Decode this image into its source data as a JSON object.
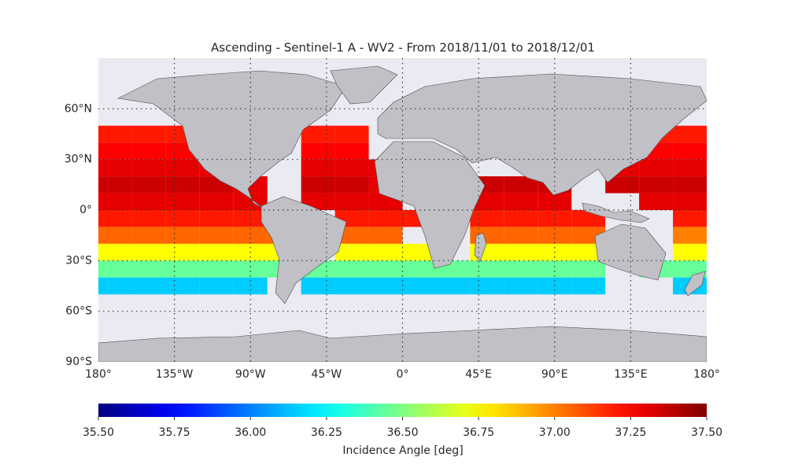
{
  "chart_data": {
    "type": "heatmap",
    "title": "Ascending - Sentinel-1 A - WV2 - From 2018/11/01 to 2018/12/01",
    "cmap": "jet",
    "grid": true,
    "xlim": [
      -180,
      180
    ],
    "ylim": [
      -90,
      90
    ],
    "xticks": [
      {
        "value": -180,
        "label": "180°"
      },
      {
        "value": -135,
        "label": "135°W"
      },
      {
        "value": -90,
        "label": "90°W"
      },
      {
        "value": -45,
        "label": "45°W"
      },
      {
        "value": 0,
        "label": "0°"
      },
      {
        "value": 45,
        "label": "45°E"
      },
      {
        "value": 90,
        "label": "90°E"
      },
      {
        "value": 135,
        "label": "135°E"
      },
      {
        "value": 180,
        "label": "180°"
      }
    ],
    "yticks": [
      {
        "value": -90,
        "label": "90°S"
      },
      {
        "value": -60,
        "label": "60°S"
      },
      {
        "value": -30,
        "label": "30°S"
      },
      {
        "value": 0,
        "label": "0°"
      },
      {
        "value": 30,
        "label": "30°N"
      },
      {
        "value": 60,
        "label": "60°N"
      }
    ],
    "x": [
      -180,
      -160,
      -140,
      -120,
      -100,
      -80,
      -60,
      -40,
      -20,
      0,
      20,
      40,
      60,
      80,
      100,
      120,
      140,
      160,
      180
    ],
    "y": [
      50,
      40,
      30,
      20,
      10,
      0,
      -10,
      -20,
      -30,
      -40,
      -50
    ],
    "values": [
      [
        37.2,
        37.2,
        37.2,
        null,
        null,
        null,
        37.2,
        37.2,
        null,
        null,
        null,
        null,
        null,
        null,
        null,
        null,
        37.2,
        37.2
      ],
      [
        37.25,
        37.25,
        37.25,
        37.25,
        null,
        null,
        37.25,
        37.25,
        null,
        null,
        null,
        null,
        null,
        null,
        null,
        null,
        37.25,
        37.25
      ],
      [
        37.3,
        37.3,
        37.3,
        37.3,
        null,
        null,
        37.3,
        37.3,
        37.3,
        null,
        null,
        null,
        null,
        null,
        null,
        37.3,
        37.3,
        37.3
      ],
      [
        37.35,
        37.35,
        37.35,
        37.35,
        37.3,
        null,
        37.35,
        37.35,
        37.3,
        null,
        null,
        37.35,
        37.35,
        37.35,
        null,
        37.35,
        37.35,
        37.35
      ],
      [
        37.3,
        37.3,
        37.3,
        37.3,
        37.3,
        null,
        37.3,
        37.3,
        37.3,
        null,
        null,
        37.3,
        37.3,
        37.3,
        null,
        null,
        37.3,
        37.3
      ],
      [
        37.2,
        37.2,
        37.2,
        37.2,
        37.2,
        null,
        null,
        37.2,
        37.2,
        37.2,
        null,
        37.2,
        37.2,
        37.2,
        37.2,
        null,
        null,
        37.2
      ],
      [
        37.05,
        37.05,
        37.05,
        37.05,
        37.05,
        37.05,
        null,
        37.05,
        37.05,
        null,
        null,
        37.05,
        37.05,
        37.05,
        37.05,
        null,
        null,
        37.0
      ],
      [
        36.75,
        36.75,
        36.75,
        36.75,
        36.75,
        36.75,
        null,
        36.75,
        36.75,
        36.75,
        null,
        36.75,
        36.75,
        36.75,
        36.75,
        null,
        null,
        36.75
      ],
      [
        36.45,
        36.45,
        36.45,
        36.45,
        36.45,
        36.45,
        36.45,
        36.45,
        36.45,
        36.45,
        36.45,
        36.45,
        36.45,
        36.45,
        36.45,
        null,
        36.45,
        36.45
      ],
      [
        36.15,
        36.15,
        36.15,
        36.15,
        36.15,
        null,
        36.15,
        36.15,
        36.15,
        36.15,
        36.15,
        36.15,
        36.15,
        36.15,
        36.15,
        null,
        null,
        36.15
      ]
    ],
    "colorbar": {
      "label": "Incidence Angle [deg]",
      "clim": [
        35.5,
        37.5
      ],
      "ticks": [
        {
          "value": 35.5,
          "label": "35.50"
        },
        {
          "value": 35.75,
          "label": "35.75"
        },
        {
          "value": 36.0,
          "label": "36.00"
        },
        {
          "value": 36.25,
          "label": "36.25"
        },
        {
          "value": 36.5,
          "label": "36.50"
        },
        {
          "value": 36.75,
          "label": "36.75"
        },
        {
          "value": 37.0,
          "label": "37.00"
        },
        {
          "value": 37.25,
          "label": "37.25"
        },
        {
          "value": 37.5,
          "label": "37.50"
        }
      ]
    }
  }
}
